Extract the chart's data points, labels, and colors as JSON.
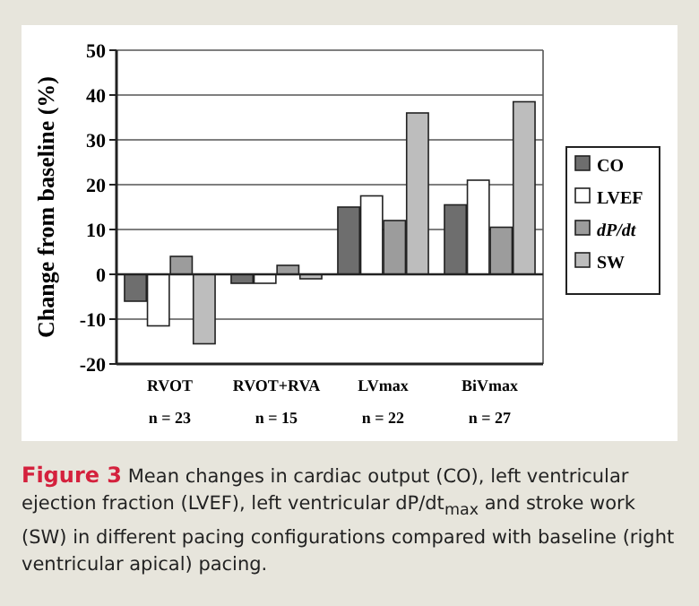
{
  "chart_data": {
    "type": "bar",
    "title": "Figure 3",
    "subtitle": "Mean changes in cardiac output (CO), left ventricular ejection fraction (LVEF), left ventricular dP/dt$_{max}$ and stroke work (SW) in different pacing configurations compared with baseline (right ventricular apical) pacing.",
    "ylabel": "Change from baseline (%)",
    "categories": [
      "RVOT\nn = 23",
      "RVOT+RVA\nn = 15",
      "LVmax\nn = 22",
      "BiVmax\nn = 27"
    ],
    "series": [
      {
        "name": "CO",
        "color": "#6e6e6e",
        "values": [
          -6,
          -2,
          15,
          15.5
        ]
      },
      {
        "name": "LVEF",
        "color": "#ffffff",
        "values": [
          -11.5,
          -2,
          17.5,
          21
        ]
      },
      {
        "name": "dP/dt",
        "color": "#9c9c9c",
        "values": [
          4,
          2,
          12,
          10.5
        ]
      },
      {
        "name": "SW",
        "color": "#bdbdbd",
        "values": [
          -15.5,
          -1,
          36,
          38.5
        ]
      }
    ],
    "ylim": [
      -20,
      50
    ],
    "yticks": [
      -20,
      -10,
      0,
      10,
      20,
      30,
      40,
      50
    ],
    "grid": "y",
    "legend": "right"
  }
}
